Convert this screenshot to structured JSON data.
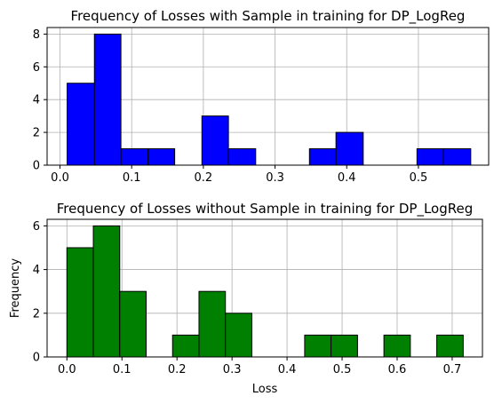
{
  "chart_data": [
    {
      "type": "bar",
      "title": "Frequency of Losses with Sample in training for DP_LogReg",
      "xlabel": "",
      "ylabel": "",
      "color": "#0000ff",
      "edge_color": "#000000",
      "grid": true,
      "xlim": [
        -0.018,
        0.598
      ],
      "ylim": [
        0,
        8.4
      ],
      "xticks": [
        "0.0",
        "0.1",
        "0.2",
        "0.3",
        "0.4",
        "0.5"
      ],
      "xtick_values": [
        0.0,
        0.1,
        0.2,
        0.3,
        0.4,
        0.5
      ],
      "yticks": [
        "0",
        "2",
        "4",
        "6",
        "8"
      ],
      "ytick_values": [
        0,
        2,
        4,
        6,
        8
      ],
      "bins": [
        [
          0.01,
          0.048
        ],
        [
          0.048,
          0.085
        ],
        [
          0.085,
          0.123
        ],
        [
          0.123,
          0.16
        ],
        [
          0.16,
          0.198
        ],
        [
          0.198,
          0.235
        ],
        [
          0.235,
          0.273
        ],
        [
          0.273,
          0.31
        ],
        [
          0.31,
          0.348
        ],
        [
          0.348,
          0.385
        ],
        [
          0.385,
          0.423
        ],
        [
          0.423,
          0.46
        ],
        [
          0.46,
          0.498
        ],
        [
          0.498,
          0.535
        ],
        [
          0.535,
          0.573
        ]
      ],
      "values": [
        5,
        8,
        1,
        1,
        0,
        3,
        1,
        0,
        0,
        1,
        2,
        0,
        0,
        1,
        1
      ]
    },
    {
      "type": "bar",
      "title": "Frequency of Losses without Sample in training for DP_LogReg",
      "xlabel": "Loss",
      "ylabel": "Frequency",
      "color": "#008000",
      "edge_color": "#000000",
      "grid": true,
      "xlim": [
        -0.036,
        0.755
      ],
      "ylim": [
        0,
        6.3
      ],
      "xticks": [
        "0.0",
        "0.1",
        "0.2",
        "0.3",
        "0.4",
        "0.5",
        "0.6",
        "0.7"
      ],
      "xtick_values": [
        0.0,
        0.1,
        0.2,
        0.3,
        0.4,
        0.5,
        0.6,
        0.7
      ],
      "yticks": [
        "0",
        "2",
        "4",
        "6"
      ],
      "ytick_values": [
        0,
        2,
        4,
        6
      ],
      "bins": [
        [
          0.0,
          0.048
        ],
        [
          0.048,
          0.096
        ],
        [
          0.096,
          0.144
        ],
        [
          0.144,
          0.192
        ],
        [
          0.192,
          0.24
        ],
        [
          0.24,
          0.288
        ],
        [
          0.288,
          0.336
        ],
        [
          0.336,
          0.384
        ],
        [
          0.384,
          0.432
        ],
        [
          0.432,
          0.48
        ],
        [
          0.48,
          0.528
        ],
        [
          0.528,
          0.576
        ],
        [
          0.576,
          0.624
        ],
        [
          0.624,
          0.672
        ],
        [
          0.672,
          0.72
        ]
      ],
      "values": [
        5,
        6,
        3,
        0,
        1,
        3,
        2,
        0,
        0,
        1,
        1,
        0,
        1,
        0,
        1
      ]
    }
  ]
}
